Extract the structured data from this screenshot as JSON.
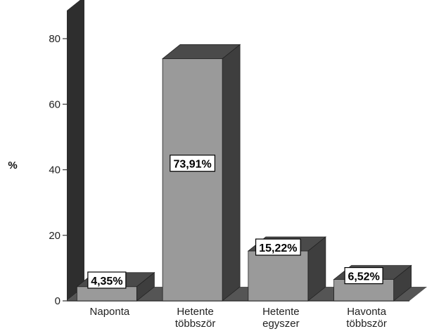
{
  "chart_data": {
    "type": "bar",
    "categories": [
      [
        "Naponta"
      ],
      [
        "Hetente",
        "többször"
      ],
      [
        "Hetente",
        "egyszer"
      ],
      [
        "Havonta",
        "többször"
      ]
    ],
    "values": [
      4.35,
      73.91,
      15.22,
      6.52
    ],
    "data_labels": [
      "4,35%",
      "73,91%",
      "15,22%",
      "6,52%"
    ],
    "ylabel": "%",
    "ylim": [
      0,
      80
    ],
    "yticks": [
      0,
      20,
      40,
      60,
      80
    ],
    "style": "3d",
    "grid": false,
    "legend": "none",
    "colors": {
      "bar_front": "#9a9a9a",
      "bar_top": "#4a4a4a",
      "bar_side": "#3e3e3e",
      "wall": "#2e2e2e",
      "floor": "#555555",
      "axis": "#333333",
      "label_box": "#ffffff"
    }
  }
}
